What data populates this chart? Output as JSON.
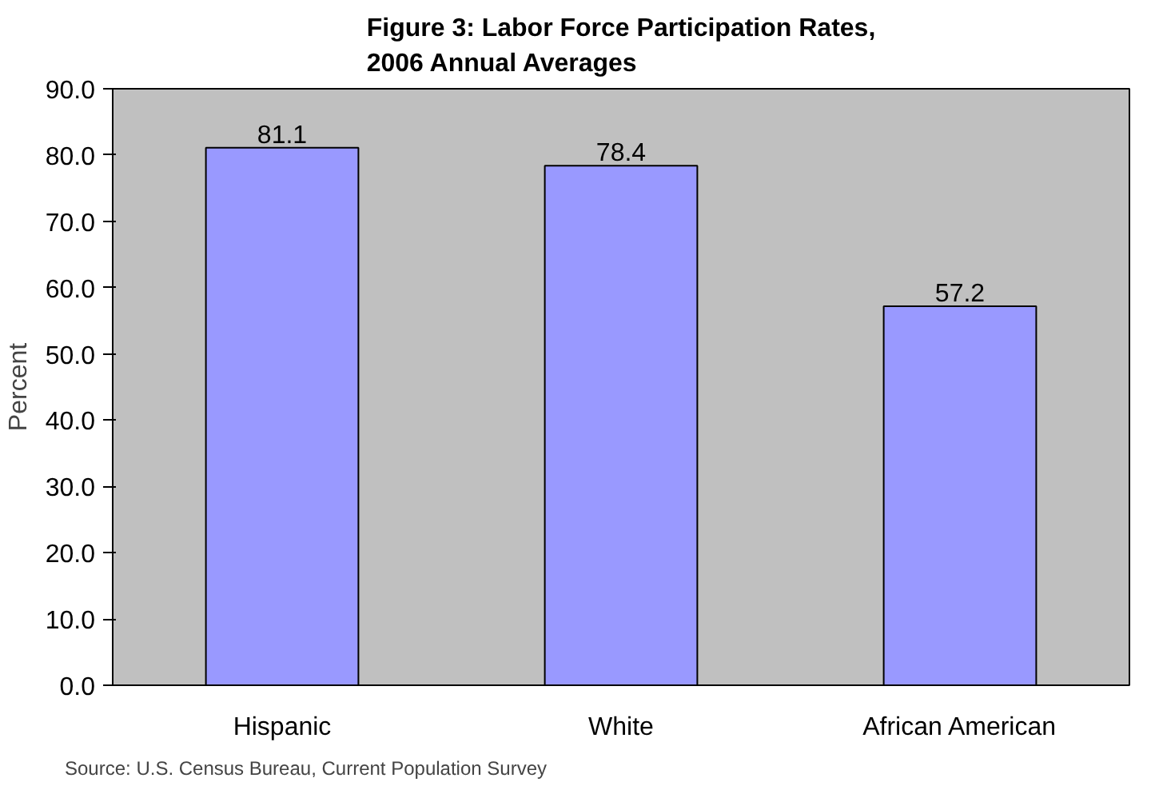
{
  "chart_data": {
    "type": "bar",
    "title": "Figure 3: Labor Force Participation Rates, 2006 Annual Averages",
    "ylabel": "Percent",
    "categories": [
      "Hispanic",
      "White",
      "African American"
    ],
    "values": [
      81.1,
      78.4,
      57.2
    ],
    "color": "#9999ff",
    "ylim": [
      0,
      90
    ],
    "yticks": [
      {
        "value": 0,
        "label": "0.0"
      },
      {
        "value": 10,
        "label": "10.0"
      },
      {
        "value": 20,
        "label": "20.0"
      },
      {
        "value": 30,
        "label": "30.0"
      },
      {
        "value": 40,
        "label": "40.0"
      },
      {
        "value": 50,
        "label": "50.0"
      },
      {
        "value": 60,
        "label": "60.0"
      },
      {
        "value": 70,
        "label": "70.0"
      },
      {
        "value": 80,
        "label": "80.0"
      },
      {
        "value": 90,
        "label": "90.0"
      }
    ],
    "data_labels": true,
    "grid": false,
    "annotations": [
      "Source: U.S. Census Bureau, Current Population Survey"
    ]
  }
}
